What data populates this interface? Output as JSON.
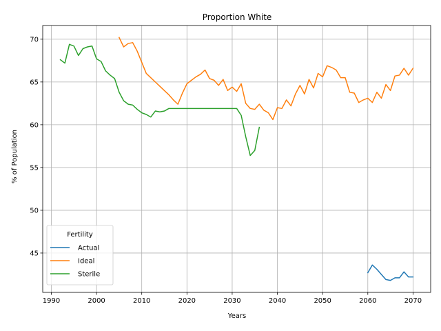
{
  "chart_data": {
    "type": "line",
    "title": "Proportion White",
    "xlabel": "Years",
    "ylabel": "% of Population",
    "xlim": [
      1988.1,
      2073.9
    ],
    "ylim": [
      40.4,
      71.6
    ],
    "xticks": [
      1990,
      2000,
      2010,
      2020,
      2030,
      2040,
      2050,
      2060,
      2070
    ],
    "yticks": [
      45,
      50,
      55,
      60,
      65,
      70
    ],
    "grid": true,
    "legend": {
      "title": "Fertility",
      "position": "lower-left"
    },
    "series": [
      {
        "name": "Actual",
        "color": "#1f77b4",
        "points": [
          [
            2060,
            42.7
          ],
          [
            2061,
            43.6
          ],
          [
            2062,
            43.1
          ],
          [
            2063,
            42.5
          ],
          [
            2064,
            41.9
          ],
          [
            2065,
            41.8
          ],
          [
            2066,
            42.1
          ],
          [
            2067,
            42.1
          ],
          [
            2068,
            42.8
          ],
          [
            2069,
            42.2
          ],
          [
            2070,
            42.2
          ]
        ]
      },
      {
        "name": "Ideal",
        "color": "#ff7f0e",
        "points": [
          [
            2005,
            70.2
          ],
          [
            2006,
            69.1
          ],
          [
            2007,
            69.5
          ],
          [
            2008,
            69.6
          ],
          [
            2009,
            68.6
          ],
          [
            2010,
            67.3
          ],
          [
            2011,
            66.0
          ],
          [
            2012,
            65.5
          ],
          [
            2013,
            65.0
          ],
          [
            2014,
            64.5
          ],
          [
            2015,
            64.0
          ],
          [
            2016,
            63.5
          ],
          [
            2017,
            62.9
          ],
          [
            2018,
            62.4
          ],
          [
            2019,
            63.7
          ],
          [
            2020,
            64.8
          ],
          [
            2021,
            65.2
          ],
          [
            2022,
            65.6
          ],
          [
            2023,
            65.9
          ],
          [
            2024,
            66.4
          ],
          [
            2025,
            65.4
          ],
          [
            2026,
            65.2
          ],
          [
            2027,
            64.6
          ],
          [
            2028,
            65.3
          ],
          [
            2029,
            64.0
          ],
          [
            2030,
            64.4
          ],
          [
            2031,
            63.9
          ],
          [
            2032,
            64.8
          ],
          [
            2033,
            62.5
          ],
          [
            2034,
            61.9
          ],
          [
            2035,
            61.8
          ],
          [
            2036,
            62.4
          ],
          [
            2037,
            61.7
          ],
          [
            2038,
            61.4
          ],
          [
            2039,
            60.6
          ],
          [
            2040,
            62.0
          ],
          [
            2041,
            61.9
          ],
          [
            2042,
            62.9
          ],
          [
            2043,
            62.2
          ],
          [
            2044,
            63.6
          ],
          [
            2045,
            64.6
          ],
          [
            2046,
            63.6
          ],
          [
            2047,
            65.3
          ],
          [
            2048,
            64.3
          ],
          [
            2049,
            66.0
          ],
          [
            2050,
            65.6
          ],
          [
            2051,
            66.9
          ],
          [
            2052,
            66.7
          ],
          [
            2053,
            66.4
          ],
          [
            2054,
            65.5
          ],
          [
            2055,
            65.5
          ],
          [
            2056,
            63.8
          ],
          [
            2057,
            63.7
          ],
          [
            2058,
            62.6
          ],
          [
            2059,
            62.9
          ],
          [
            2060,
            63.1
          ],
          [
            2061,
            62.6
          ],
          [
            2062,
            63.8
          ],
          [
            2063,
            63.1
          ],
          [
            2064,
            64.7
          ],
          [
            2065,
            64.0
          ],
          [
            2066,
            65.7
          ],
          [
            2067,
            65.8
          ],
          [
            2068,
            66.6
          ],
          [
            2069,
            65.8
          ],
          [
            2070,
            66.6
          ]
        ]
      },
      {
        "name": "Sterile",
        "color": "#2ca02c",
        "points": [
          [
            1992,
            67.6
          ],
          [
            1993,
            67.2
          ],
          [
            1994,
            69.4
          ],
          [
            1995,
            69.2
          ],
          [
            1996,
            68.1
          ],
          [
            1997,
            68.9
          ],
          [
            1998,
            69.1
          ],
          [
            1999,
            69.2
          ],
          [
            2000,
            67.7
          ],
          [
            2001,
            67.4
          ],
          [
            2002,
            66.3
          ],
          [
            2003,
            65.8
          ],
          [
            2004,
            65.4
          ],
          [
            2005,
            63.8
          ],
          [
            2006,
            62.8
          ],
          [
            2007,
            62.4
          ],
          [
            2008,
            62.3
          ],
          [
            2009,
            61.8
          ],
          [
            2010,
            61.4
          ],
          [
            2011,
            61.2
          ],
          [
            2012,
            60.9
          ],
          [
            2013,
            61.6
          ],
          [
            2014,
            61.5
          ],
          [
            2015,
            61.6
          ],
          [
            2016,
            61.9
          ],
          [
            2017,
            61.9
          ],
          [
            2018,
            61.9
          ],
          [
            2019,
            61.9
          ],
          [
            2020,
            61.9
          ],
          [
            2021,
            61.9
          ],
          [
            2022,
            61.9
          ],
          [
            2023,
            61.9
          ],
          [
            2024,
            61.9
          ],
          [
            2025,
            61.9
          ],
          [
            2026,
            61.9
          ],
          [
            2027,
            61.9
          ],
          [
            2028,
            61.9
          ],
          [
            2029,
            61.9
          ],
          [
            2030,
            61.9
          ],
          [
            2031,
            61.9
          ],
          [
            2032,
            61.1
          ],
          [
            2033,
            58.6
          ],
          [
            2034,
            56.4
          ],
          [
            2035,
            57.0
          ],
          [
            2036,
            59.7
          ]
        ]
      }
    ]
  }
}
